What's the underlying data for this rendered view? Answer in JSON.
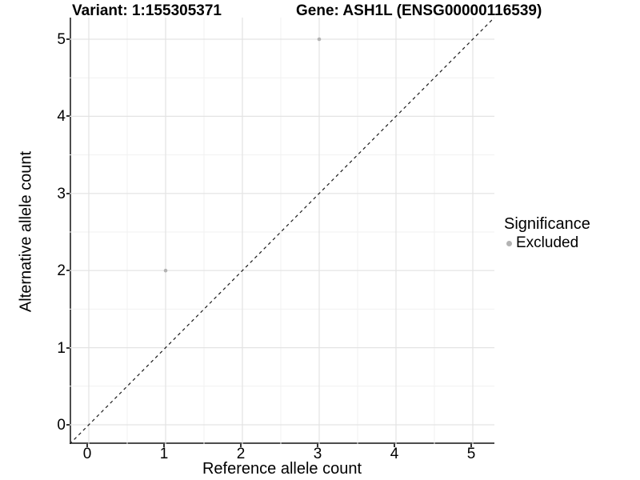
{
  "header": {
    "title_left": "Variant: 1:155305371",
    "title_right": "Gene: ASH1L (ENSG00000116539)"
  },
  "legend": {
    "title": "Significance",
    "position": "right",
    "items": [
      {
        "label": "Excluded",
        "color": "#b3b3b3"
      }
    ]
  },
  "chart_data": {
    "type": "scatter",
    "title": "Variant: 1:155305371 / Gene: ASH1L (ENSG00000116539)",
    "xlabel": "Reference allele count",
    "ylabel": "Alternative allele count",
    "xticks": [
      0,
      1,
      2,
      3,
      4,
      5
    ],
    "yticks": [
      0,
      1,
      2,
      3,
      4,
      5
    ],
    "xlim": [
      -0.25,
      5.28
    ],
    "ylim": [
      -0.25,
      5.28
    ],
    "grid": {
      "major": true,
      "minor": true
    },
    "series": [
      {
        "name": "Excluded",
        "color": "#b3b3b3",
        "points": [
          {
            "x": 1,
            "y": 2
          },
          {
            "x": 3,
            "y": 5
          }
        ]
      }
    ],
    "identity_line": {
      "style": "dashed",
      "from": [
        -0.25,
        -0.25
      ],
      "to": [
        5.28,
        5.28
      ],
      "color": "#1a1a1a"
    },
    "colors": {
      "point": "#b3b3b3",
      "grid_major": "#e3e3e3",
      "grid_minor": "#f1f1f1",
      "axis_line": "#4d4d4d",
      "tick_mark": "#333333",
      "background": "#ffffff"
    }
  }
}
